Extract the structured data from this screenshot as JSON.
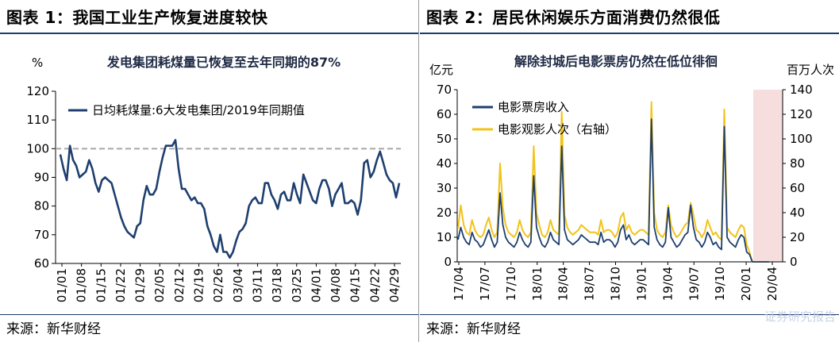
{
  "panels": [
    {
      "figure_title": "图表 1：我国工业生产恢复进度较快",
      "source": "来源：新华财经"
    },
    {
      "figure_title": "图表 2：居民休闲娱乐方面消费仍然很低",
      "source": "来源：新华财经"
    }
  ],
  "watermark": "证券研究报告",
  "colors": {
    "navy": "#1e3f6f",
    "gold": "#f2c319",
    "rule": "#1a3c6e",
    "shade": "#f6dede",
    "ref": "#a6a6a6"
  },
  "chart_data": [
    {
      "type": "line",
      "title": "发电集团耗煤量已恢复至去年同期的87%",
      "ylabel": "%",
      "ylim": [
        60,
        120
      ],
      "yticks": [
        60,
        70,
        80,
        90,
        100,
        110,
        120
      ],
      "xlabels": [
        "01/01",
        "01/08",
        "01/15",
        "01/22",
        "01/29",
        "02/05",
        "02/12",
        "02/19",
        "02/26",
        "03/04",
        "03/11",
        "03/18",
        "03/25",
        "04/01",
        "04/08",
        "04/15",
        "04/22",
        "04/29"
      ],
      "reference_line": 100,
      "series": [
        {
          "name": "日均耗煤量:6大发电集团/2019年同期值",
          "color": "#1e3f6f",
          "values": [
            98,
            93,
            89,
            101,
            96,
            94,
            90,
            91,
            92,
            96,
            93,
            88,
            85,
            89,
            90,
            89,
            88,
            84,
            80,
            76,
            73,
            71,
            70,
            69,
            73,
            74,
            82,
            87,
            84,
            84,
            86,
            92,
            97,
            101,
            101,
            101,
            103,
            93,
            86,
            86,
            84,
            82,
            83,
            81,
            81,
            79,
            73,
            70,
            66,
            64,
            70,
            64,
            64,
            62,
            64,
            68,
            71,
            72,
            74,
            80,
            82,
            83,
            81,
            81,
            88,
            88,
            84,
            82,
            79,
            84,
            85,
            82,
            82,
            88,
            84,
            81,
            91,
            88,
            85,
            82,
            81,
            86,
            89,
            89,
            86,
            80,
            84,
            86,
            88,
            81,
            81,
            82,
            81,
            77,
            82,
            95,
            96,
            90,
            92,
            96,
            99,
            95,
            91,
            89,
            88,
            83,
            88
          ]
        }
      ]
    },
    {
      "type": "line",
      "title": "解除封城后电影票房仍然在低位徘徊",
      "ylabel_left": "亿元",
      "ylabel_right": "百万人次",
      "ylim_left": [
        0,
        70
      ],
      "yticks_left": [
        0,
        10,
        20,
        30,
        40,
        50,
        60,
        70
      ],
      "ylim_right": [
        0,
        140
      ],
      "yticks_right": [
        0,
        20,
        40,
        60,
        80,
        100,
        120,
        140
      ],
      "xlabels": [
        "17/04",
        "17/07",
        "17/10",
        "18/01",
        "18/04",
        "18/07",
        "18/10",
        "19/01",
        "19/04",
        "19/07",
        "19/10",
        "20/01",
        "20/04"
      ],
      "shaded_region": "20/01 onward (COVID lockdown)",
      "series": [
        {
          "name": "电影票房收入",
          "axis": "left",
          "color": "#1e3f6f",
          "values": [
            9,
            14,
            10,
            8,
            7,
            12,
            9,
            8,
            6,
            7,
            10,
            13,
            9,
            6,
            8,
            28,
            15,
            10,
            8,
            7,
            6,
            8,
            12,
            9,
            7,
            6,
            8,
            35,
            14,
            10,
            7,
            6,
            8,
            12,
            9,
            8,
            7,
            47,
            13,
            9,
            8,
            7,
            8,
            9,
            11,
            10,
            9,
            8,
            8,
            8,
            7,
            12,
            8,
            9,
            9,
            8,
            6,
            8,
            13,
            15,
            9,
            11,
            8,
            7,
            8,
            9,
            9,
            8,
            7,
            58,
            14,
            9,
            7,
            6,
            8,
            22,
            10,
            8,
            6,
            7,
            9,
            11,
            12,
            23,
            14,
            9,
            8,
            6,
            8,
            12,
            10,
            7,
            8,
            6,
            5,
            55,
            10,
            8,
            7,
            6,
            9,
            11,
            10,
            4,
            3,
            0,
            0,
            0,
            0,
            0,
            0,
            0
          ]
        },
        {
          "name": "电影观影人次（右轴）",
          "axis": "right",
          "color": "#f2c319",
          "values": [
            27,
            46,
            30,
            24,
            22,
            34,
            26,
            22,
            20,
            22,
            30,
            36,
            26,
            20,
            24,
            80,
            44,
            30,
            24,
            22,
            20,
            24,
            34,
            26,
            22,
            20,
            24,
            94,
            40,
            30,
            22,
            20,
            24,
            34,
            26,
            24,
            22,
            122,
            38,
            28,
            24,
            22,
            24,
            26,
            30,
            28,
            26,
            24,
            24,
            24,
            22,
            34,
            24,
            26,
            26,
            24,
            20,
            24,
            36,
            40,
            26,
            30,
            24,
            22,
            24,
            26,
            26,
            24,
            22,
            130,
            40,
            26,
            22,
            20,
            24,
            46,
            30,
            24,
            20,
            22,
            26,
            30,
            32,
            48,
            38,
            26,
            24,
            20,
            24,
            34,
            28,
            22,
            24,
            20,
            18,
            124,
            28,
            24,
            22,
            20,
            26,
            30,
            28,
            14,
            8,
            0,
            0,
            0,
            0,
            0,
            0,
            0
          ]
        }
      ]
    }
  ]
}
